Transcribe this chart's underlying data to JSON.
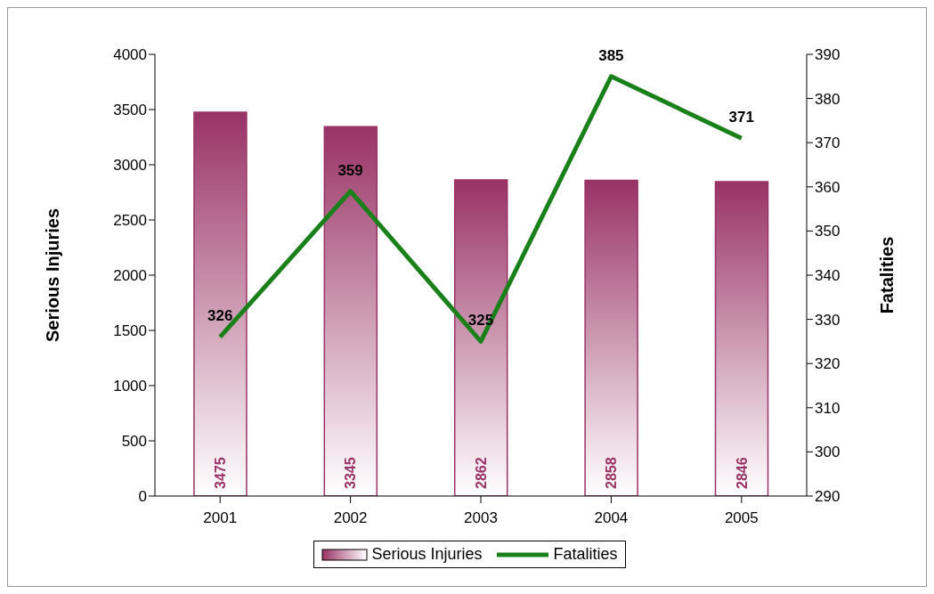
{
  "chart_data": {
    "type": "bar",
    "categories": [
      "2001",
      "2002",
      "2003",
      "2004",
      "2005"
    ],
    "series": [
      {
        "name": "Serious Injuries",
        "color": "#993366",
        "values": [
          3475,
          3345,
          2862,
          2858,
          2846
        ]
      },
      {
        "name": "Fatalities",
        "type": "line",
        "axis": "y2",
        "color": "#1a801a",
        "values": [
          326,
          359,
          325,
          385,
          371
        ]
      }
    ],
    "ylabel": "Serious Injuries",
    "y2label": "Fatalities",
    "ylim": [
      0,
      4000
    ],
    "yticks": [
      0,
      500,
      1000,
      1500,
      2000,
      2500,
      3000,
      3500,
      4000
    ],
    "y2lim": [
      290,
      390
    ],
    "y2ticks": [
      290,
      300,
      310,
      320,
      330,
      340,
      350,
      360,
      370,
      380,
      390
    ],
    "data_labels": true,
    "legend": "bottom",
    "grid": false,
    "marker": "none"
  }
}
